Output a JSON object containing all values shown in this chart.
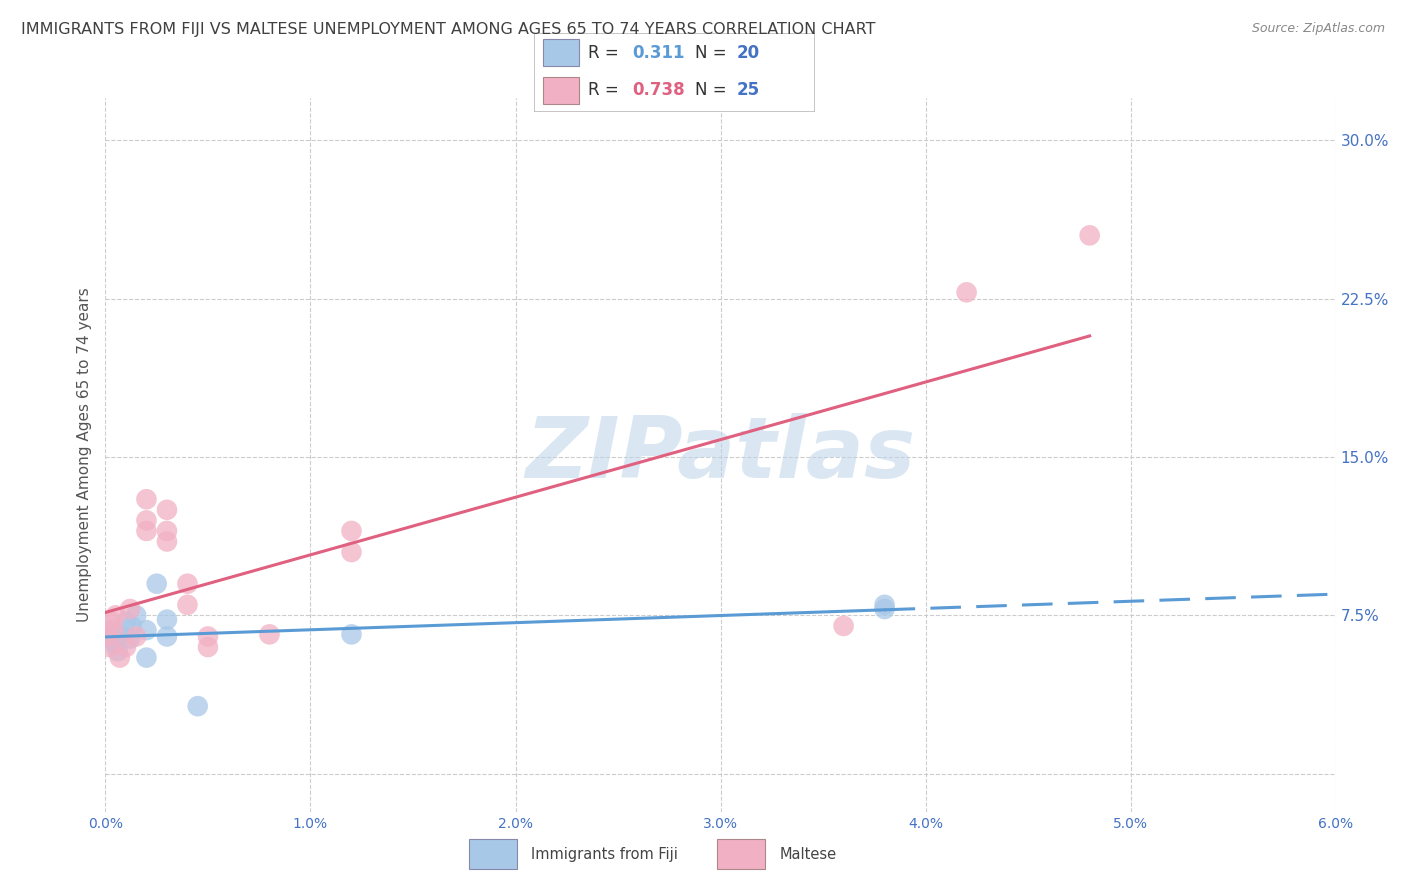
{
  "title": "IMMIGRANTS FROM FIJI VS MALTESE UNEMPLOYMENT AMONG AGES 65 TO 74 YEARS CORRELATION CHART",
  "source": "Source: ZipAtlas.com",
  "ylabel": "Unemployment Among Ages 65 to 74 years",
  "x_label_fiji": "Immigrants from Fiji",
  "x_label_maltese": "Maltese",
  "xlim": [
    0.0,
    0.06
  ],
  "ylim": [
    -0.018,
    0.32
  ],
  "yticks": [
    0.0,
    0.075,
    0.15,
    0.225,
    0.3
  ],
  "ytick_labels": [
    "",
    "7.5%",
    "15.0%",
    "22.5%",
    "30.0%"
  ],
  "fiji_R": "0.311",
  "fiji_N": "20",
  "maltese_R": "0.738",
  "maltese_N": "25",
  "fiji_color": "#A8C8E8",
  "fiji_color_dark": "#5B9BD5",
  "maltese_color": "#F2B0C4",
  "maltese_color_dark": "#E06080",
  "fiji_scatter_x": [
    0.0001,
    0.0002,
    0.0003,
    0.0004,
    0.0005,
    0.0006,
    0.0007,
    0.001,
    0.0012,
    0.0013,
    0.0015,
    0.002,
    0.002,
    0.0025,
    0.003,
    0.003,
    0.0045,
    0.012,
    0.038,
    0.038
  ],
  "fiji_scatter_y": [
    0.068,
    0.064,
    0.065,
    0.062,
    0.063,
    0.058,
    0.066,
    0.072,
    0.064,
    0.07,
    0.075,
    0.055,
    0.068,
    0.09,
    0.073,
    0.065,
    0.032,
    0.066,
    0.08,
    0.078
  ],
  "maltese_scatter_x": [
    0.0001,
    0.0002,
    0.0003,
    0.0004,
    0.0005,
    0.0007,
    0.001,
    0.0012,
    0.0015,
    0.002,
    0.002,
    0.002,
    0.003,
    0.003,
    0.003,
    0.004,
    0.004,
    0.005,
    0.005,
    0.008,
    0.012,
    0.012,
    0.036,
    0.042,
    0.048
  ],
  "maltese_scatter_y": [
    0.065,
    0.06,
    0.072,
    0.068,
    0.075,
    0.055,
    0.06,
    0.078,
    0.065,
    0.115,
    0.12,
    0.13,
    0.11,
    0.125,
    0.115,
    0.09,
    0.08,
    0.065,
    0.06,
    0.066,
    0.115,
    0.105,
    0.07,
    0.228,
    0.255
  ],
  "watermark": "ZIPatlas",
  "background_color": "#ffffff",
  "grid_color": "#cccccc",
  "tick_color": "#4472C4",
  "title_color": "#404040",
  "title_fontsize": 11.5,
  "legend_N_color": "#4472C4",
  "legend_bg": "#ffffff",
  "legend_border": "#cccccc"
}
